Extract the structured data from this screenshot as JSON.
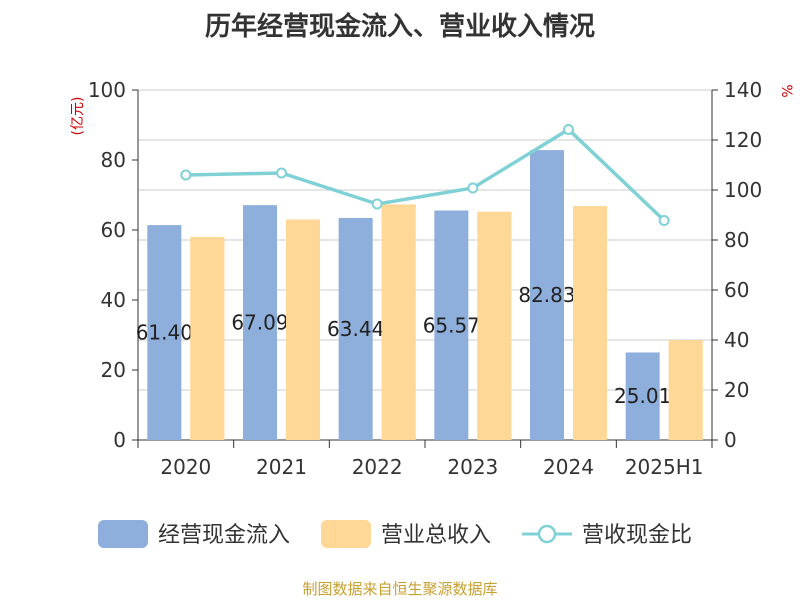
{
  "title": "历年经营现金流入、营业收入情况",
  "source": "制图数据来自恒生聚源数据库",
  "chart_data": {
    "type": "bar",
    "categories": [
      "2020",
      "2021",
      "2022",
      "2023",
      "2024",
      "2025H1"
    ],
    "y_left": {
      "unit": "(亿元)",
      "min": 0,
      "max": 100,
      "ticks": [
        "0",
        "20",
        "40",
        "60",
        "80",
        "100"
      ]
    },
    "y_right": {
      "unit": "%",
      "min": 0,
      "max": 140,
      "ticks": [
        "0",
        "20",
        "40",
        "60",
        "80",
        "100",
        "120",
        "140"
      ]
    },
    "grid": true,
    "legend_position": "bottom",
    "series": [
      {
        "name": "经营现金流入",
        "type": "bar",
        "axis": "left",
        "color": "#8eaedb",
        "values": [
          61.4,
          67.1,
          63.44,
          65.57,
          82.83,
          25.01
        ],
        "labels": [
          "61.40",
          "67.09",
          "63.44",
          "65.57",
          "82.83",
          "25.01"
        ]
      },
      {
        "name": "营业总收入",
        "type": "bar",
        "axis": "left",
        "color": "#ffd897",
        "values": [
          58.0,
          63.0,
          67.3,
          65.2,
          66.8,
          28.5
        ]
      },
      {
        "name": "营收现金比",
        "type": "line",
        "axis": "right",
        "color": "#7fd1d6",
        "values": [
          106.0,
          106.8,
          94.4,
          100.8,
          124.2,
          87.8
        ]
      }
    ]
  }
}
